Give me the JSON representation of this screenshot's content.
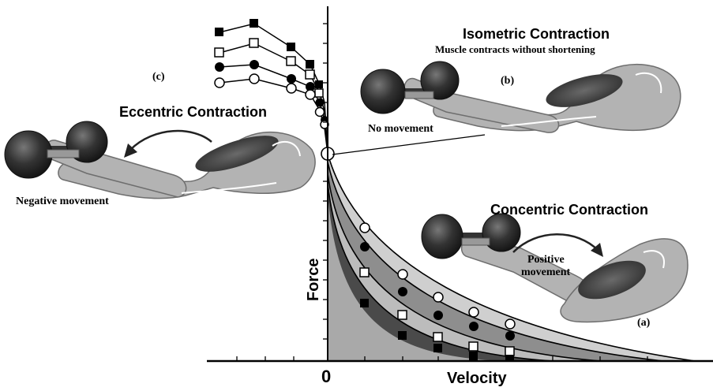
{
  "labels": {
    "c": "(c)",
    "b": "(b)",
    "a": "(a)",
    "eccentric_title": "Eccentric Contraction",
    "negative_movement": "Negative movement",
    "isometric_title": "Isometric Contraction",
    "isometric_subtitle": "Muscle contracts without shortening",
    "no_movement": "No movement",
    "concentric_title": "Concentric Contraction",
    "positive": "Positive",
    "movement": "movement",
    "axis_zero": "0",
    "axis_x": "Velocity",
    "axis_y": "Force"
  },
  "colors": {
    "ink": "#000000",
    "arm_fill": "#b3b3b3",
    "arm_stroke": "#6e6e6e",
    "muscle": "#3c3c3c",
    "muscle_light": "#6a6a6a",
    "weight": "#2a2a2a",
    "band_dark": "#4a4a4a",
    "band_mid": "#8c8c8c",
    "band_light": "#c9c9c9"
  },
  "icons": [
    "weight-icon",
    "arm-icon",
    "curved-arrow-icon"
  ]
}
